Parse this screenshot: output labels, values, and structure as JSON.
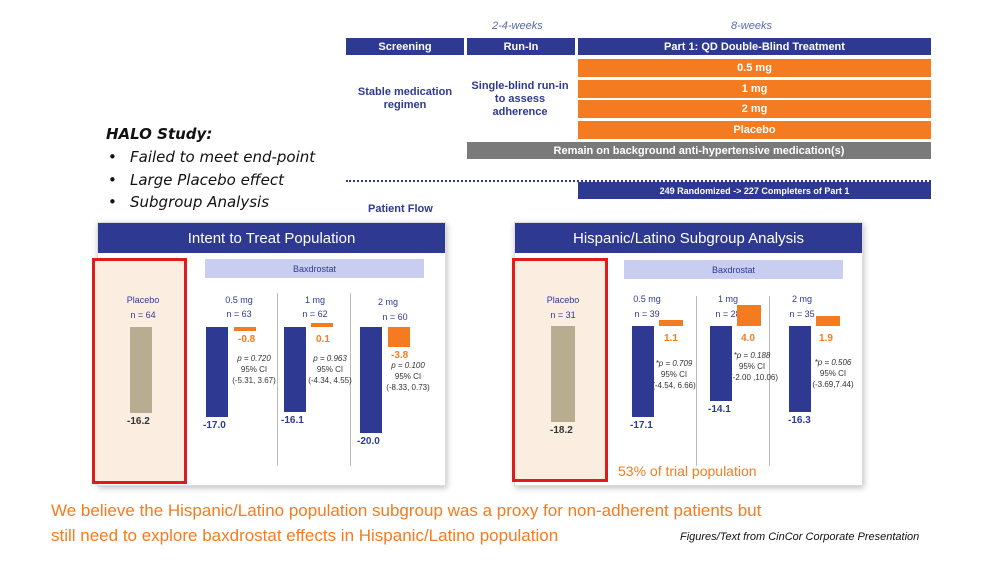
{
  "schema": {
    "weeks_runin": "2-4-weeks",
    "weeks_treatment": "8-weeks",
    "screening": "Screening",
    "runin": "Run-In",
    "part1": "Part 1: QD Double-Blind Treatment",
    "stable": "Stable medication regimen",
    "single_blind": "Single-blind run-in to assess adherence",
    "arms": [
      "0.5 mg",
      "1 mg",
      "2 mg",
      "Placebo"
    ],
    "background": "Remain on background anti-hypertensive medication(s)",
    "randomized": "249 Randomized -> 227 Completers of Part 1",
    "patient_flow": "Patient Flow"
  },
  "halo": {
    "title": "HALO Study:",
    "bullets": [
      "Failed to meet end-point",
      "Large Placebo effect",
      "Subgroup Analysis"
    ]
  },
  "chart_data": [
    {
      "type": "bar",
      "title": "Intent to Treat Population",
      "group_label": "Baxdrostat",
      "categories": [
        "Placebo",
        "0.5 mg",
        "1 mg",
        "2 mg"
      ],
      "n": [
        "n = 64",
        "n = 63",
        "n = 62",
        "n = 60"
      ],
      "series": [
        {
          "name": "",
          "color": "#2e3a91",
          "values": [
            -16.2,
            -17.0,
            -16.1,
            -20.0
          ],
          "labels": [
            "-16.2",
            "-17.0",
            "-16.1",
            "-20.0"
          ]
        },
        {
          "name": "",
          "color": "#f47b20",
          "values": [
            null,
            -0.8,
            0.1,
            -3.8
          ],
          "labels": [
            "",
            "-0.8",
            "0.1",
            "-3.8"
          ]
        }
      ],
      "stats": [
        null,
        {
          "p": "p = 0.720",
          "ci_label": "95% CI",
          "ci": "(-5.31, 3.67)"
        },
        {
          "p": "p = 0.963",
          "ci_label": "95% CI",
          "ci": "(-4.34, 4.55)"
        },
        {
          "p": "p = 0.100",
          "ci_label": "95% CI",
          "ci": "(-8.33, 0.73)"
        }
      ]
    },
    {
      "type": "bar",
      "title": "Hispanic/Latino Subgroup Analysis",
      "group_label": "Baxdrostat",
      "categories": [
        "Placebo",
        "0.5 mg",
        "1 mg",
        "2 mg"
      ],
      "n": [
        "n = 31",
        "n = 39",
        "n = 28",
        "n = 35"
      ],
      "series": [
        {
          "name": "",
          "color": "#2e3a91",
          "values": [
            -18.2,
            -17.1,
            -14.1,
            -16.3
          ],
          "labels": [
            "-18.2",
            "-17.1",
            "-14.1",
            "-16.3"
          ]
        },
        {
          "name": "",
          "color": "#f47b20",
          "values": [
            null,
            1.1,
            4.0,
            1.9
          ],
          "labels": [
            "",
            "1.1",
            "4.0",
            "1.9"
          ]
        }
      ],
      "stats": [
        null,
        {
          "p": "*p = 0.709",
          "ci_label": "95% CI",
          "ci": "(-4.54, 6.66)"
        },
        {
          "p": "*p = 0.188",
          "ci_label": "95% CI",
          "ci": "(-2.00 ,10.06)"
        },
        {
          "p": "*p = 0.506",
          "ci_label": "95% CI",
          "ci": "(-3.69,7.44)"
        }
      ],
      "annotation": "53% of trial population"
    }
  ],
  "footer": {
    "line1": "We believe the Hispanic/Latino population subgroup was a proxy for non-adherent patients but",
    "line2": "still need to explore baxdrostat effects in Hispanic/Latino population",
    "source": "Figures/Text from CinCor Corporate Presentation"
  }
}
